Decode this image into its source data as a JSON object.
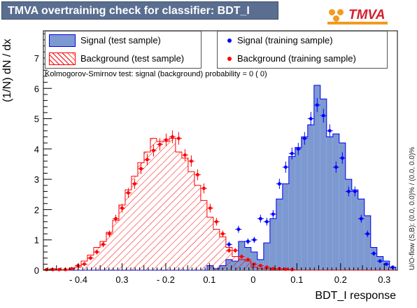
{
  "window_title": "TMVA overtraining check for classifier: BDT_I",
  "logo_text": "TMVA",
  "side_text": "U/O-flow (S,B): (0.0, 0.0)% / (0.0, 0.0)%",
  "ks_text": "Kolmogorov-Smirnov test: signal (background) probability =     0 (    0)",
  "colors": {
    "title_bg": "#5a6e90",
    "signal_fill": "#7d99d1",
    "signal_line": "#0000ee",
    "background_hatch": "#ff0000",
    "signal_marker": "#0000ff",
    "background_marker": "#ff0000"
  },
  "chart_data": {
    "type": "histogram",
    "xlabel": "BDT_I response",
    "ylabel": "(1/N) dN / dx",
    "xlim": [
      -0.48,
      0.33
    ],
    "ylim": [
      0,
      7.9
    ],
    "xticks": [
      "- 0.4",
      "0.3",
      "- 0.2",
      "0.1",
      "0",
      "0.1",
      "0.2",
      "0.3"
    ],
    "yticks": [
      "0",
      "1",
      "2",
      "3",
      "4",
      "5",
      "6",
      "7"
    ],
    "bin_edges": [
      -0.48,
      -0.4656,
      -0.4512,
      -0.4368,
      -0.4224,
      -0.408,
      -0.3936,
      -0.3792,
      -0.3648,
      -0.3504,
      -0.336,
      -0.3216,
      -0.3072,
      -0.2928,
      -0.2784,
      -0.264,
      -0.2496,
      -0.2352,
      -0.2208,
      -0.2064,
      -0.192,
      -0.1776,
      -0.1632,
      -0.1488,
      -0.1344,
      -0.12,
      -0.1056,
      -0.0912,
      -0.0768,
      -0.0624,
      -0.048,
      -0.0336,
      -0.0192,
      -0.0048,
      0.0096,
      0.024,
      0.0384,
      0.0528,
      0.0672,
      0.0816,
      0.096,
      0.1104,
      0.1248,
      0.1392,
      0.1536,
      0.168,
      0.1824,
      0.1968,
      0.2112,
      0.2256,
      0.24,
      0.2544,
      0.2688,
      0.2832,
      0.2976,
      0.312,
      0.3264
    ],
    "signal_test": [
      0,
      0,
      0,
      0,
      0,
      0,
      0,
      0,
      0,
      0,
      0,
      0,
      0,
      0,
      0,
      0,
      0,
      0,
      0,
      0,
      0,
      0,
      0,
      0,
      0,
      0,
      0.15,
      0.05,
      0.15,
      0.35,
      0.3,
      0.95,
      0.75,
      0.6,
      0.35,
      0.9,
      1.7,
      2.35,
      2.85,
      3.75,
      4.05,
      4.4,
      4.8,
      6.1,
      5.65,
      4.4,
      4.5,
      4.2,
      3.0,
      2.65,
      2.35,
      1.8,
      0.75,
      0.45,
      0.3,
      0.1
    ],
    "background_test": [
      0,
      0.05,
      0,
      0,
      0.05,
      0.1,
      0.3,
      0.5,
      0.75,
      0.95,
      1.25,
      1.65,
      2.15,
      2.65,
      3.1,
      3.55,
      3.9,
      4.35,
      4.25,
      4.25,
      4.35,
      3.9,
      3.7,
      3.25,
      2.8,
      2.3,
      1.75,
      1.35,
      1.1,
      0.75,
      0.45,
      0.35,
      0.3,
      0.1,
      0.05,
      0.05,
      0.02,
      0.02,
      0,
      0,
      0,
      0,
      0,
      0,
      0,
      0,
      0,
      0,
      0,
      0,
      0,
      0,
      0,
      0,
      0,
      0
    ],
    "series": [
      {
        "name": "Signal (test sample)",
        "style": "filled histogram"
      },
      {
        "name": "Background (test sample)",
        "style": "hatched histogram"
      },
      {
        "name": "Signal (training sample)",
        "style": "points",
        "x": [
          -0.0552,
          -0.0336,
          -0.012,
          0.0024,
          0.0168,
          0.0312,
          0.0456,
          0.06,
          0.0744,
          0.0888,
          0.1032,
          0.1176,
          0.132,
          0.1464,
          0.1608,
          0.1752,
          0.1896,
          0.204,
          0.2184,
          0.2328,
          0.2472,
          0.2616,
          0.276,
          0.2904,
          0.3048,
          0.3192
        ],
        "y": [
          0.85,
          1.35,
          0.95,
          1.0,
          1.7,
          1.6,
          1.85,
          2.85,
          3.4,
          3.85,
          4.0,
          4.35,
          5.0,
          5.45,
          5.1,
          4.6,
          3.4,
          3.7,
          2.6,
          2.6,
          1.7,
          1.2,
          0.55,
          0.3,
          0.2,
          0.1
        ]
      },
      {
        "name": "Background (training sample)",
        "style": "points",
        "x": [
          -0.4728,
          -0.4584,
          -0.444,
          -0.4296,
          -0.4152,
          -0.4008,
          -0.3864,
          -0.372,
          -0.3576,
          -0.3432,
          -0.3288,
          -0.3144,
          -0.3,
          -0.2856,
          -0.2712,
          -0.2568,
          -0.2424,
          -0.228,
          -0.2136,
          -0.1992,
          -0.1848,
          -0.1704,
          -0.156,
          -0.1416,
          -0.1272,
          -0.1128,
          -0.0984,
          -0.084,
          -0.0696,
          -0.0552,
          -0.0408,
          -0.0264,
          -0.012,
          0.0024,
          0.0168,
          0.0312,
          0.0456,
          0.06,
          0.0744,
          0.0888
        ],
        "y": [
          0.02,
          0.02,
          0.02,
          0.02,
          0.05,
          0.15,
          0.2,
          0.4,
          0.6,
          0.85,
          1.2,
          1.7,
          2.05,
          2.55,
          2.85,
          3.35,
          3.65,
          3.95,
          4.15,
          4.3,
          4.4,
          4.35,
          3.8,
          3.6,
          3.15,
          2.7,
          2.05,
          1.6,
          1.2,
          0.65,
          0.65,
          0.45,
          0.35,
          0.2,
          0.15,
          0.1,
          0.05,
          0.05,
          0.03,
          0.02
        ]
      }
    ],
    "legend": "top, two columns",
    "grid": false
  }
}
